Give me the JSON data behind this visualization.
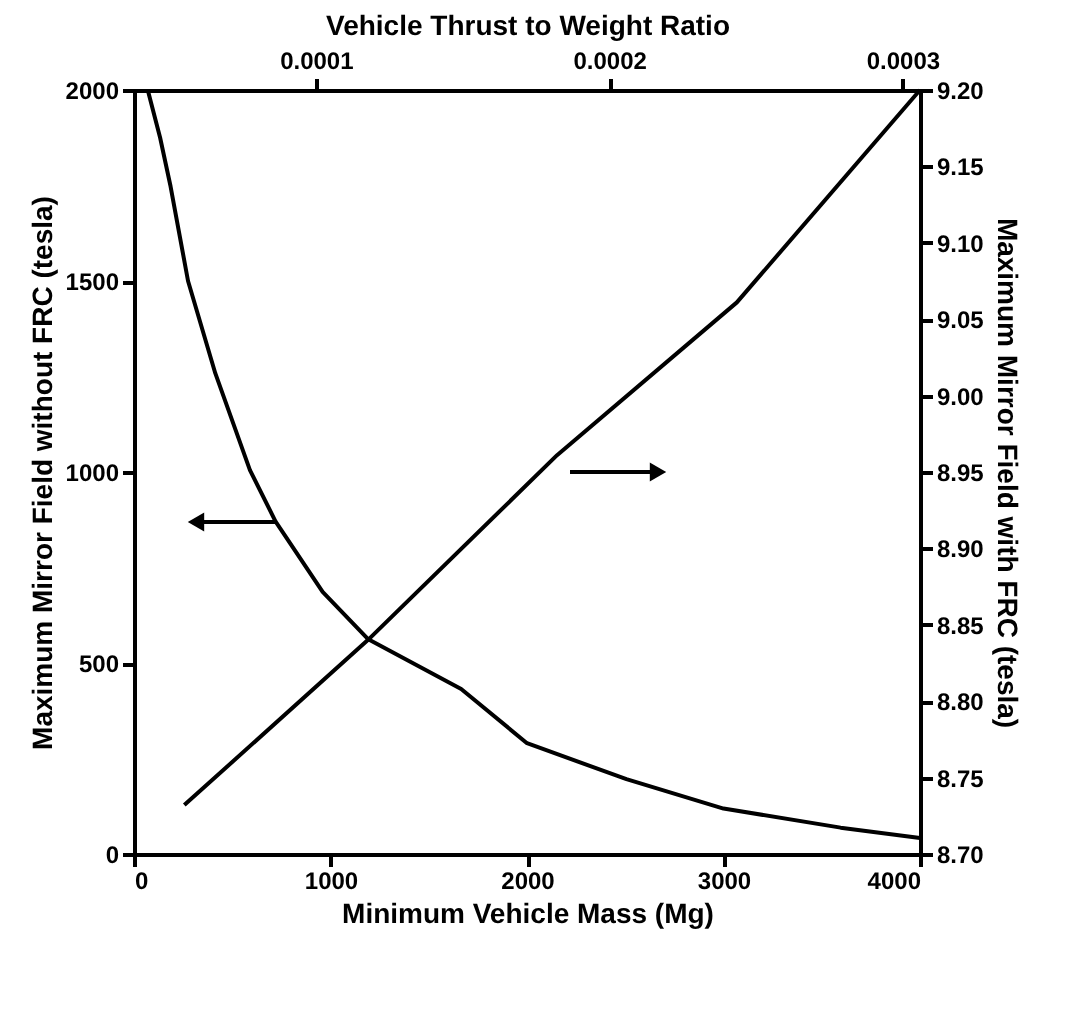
{
  "chart_data": {
    "type": "line",
    "xlabel": "Minimum Vehicle Mass (Mg)",
    "ylabel": "Maximum Mirror Field without FRC (tesla)",
    "y2label": "Maximum Mirror Field with FRC (tesla)",
    "x2label": "Vehicle Thrust to Weight Ratio",
    "xlim": [
      0,
      4000
    ],
    "xticks": [
      0,
      1000,
      2000,
      3000,
      4000
    ],
    "ylim": [
      0,
      2000
    ],
    "yticks": [
      0,
      500,
      1000,
      1500,
      2000
    ],
    "y2lim": [
      8.7,
      9.2
    ],
    "y2ticks": [
      {
        "value": 8.7,
        "label": "8.70"
      },
      {
        "value": 8.75,
        "label": "8.75"
      },
      {
        "value": 8.8,
        "label": "8.80"
      },
      {
        "value": 8.85,
        "label": "8.85"
      },
      {
        "value": 8.9,
        "label": "8.90"
      },
      {
        "value": 8.95,
        "label": "8.95"
      },
      {
        "value": 9.0,
        "label": "9.00"
      },
      {
        "value": 9.05,
        "label": "9.05"
      },
      {
        "value": 9.1,
        "label": "9.10"
      },
      {
        "value": 9.15,
        "label": "9.15"
      },
      {
        "value": 9.2,
        "label": "9.20"
      }
    ],
    "x2lim": [
      3.8e-05,
      0.000306
    ],
    "x2ticks": [
      0.0001,
      0.0002,
      0.0003
    ],
    "series": [
      {
        "color": "#000000",
        "x": [
          70,
          133,
          186,
          275,
          414,
          590,
          720,
          960,
          1190,
          1665,
          2000,
          2506,
          3000,
          3596,
          4000
        ],
        "values": [
          2000,
          1875,
          1748,
          1500,
          1258,
          1005,
          871,
          686,
          563,
          432,
          290,
          196,
          119,
          69,
          42
        ]
      },
      {
        "color": "#000000",
        "axis": "y2",
        "x": [
          256,
          1190,
          2153,
          3068,
          4000
        ],
        "values": [
          8.732,
          8.84,
          8.961,
          9.061,
          9.2
        ]
      }
    ]
  }
}
